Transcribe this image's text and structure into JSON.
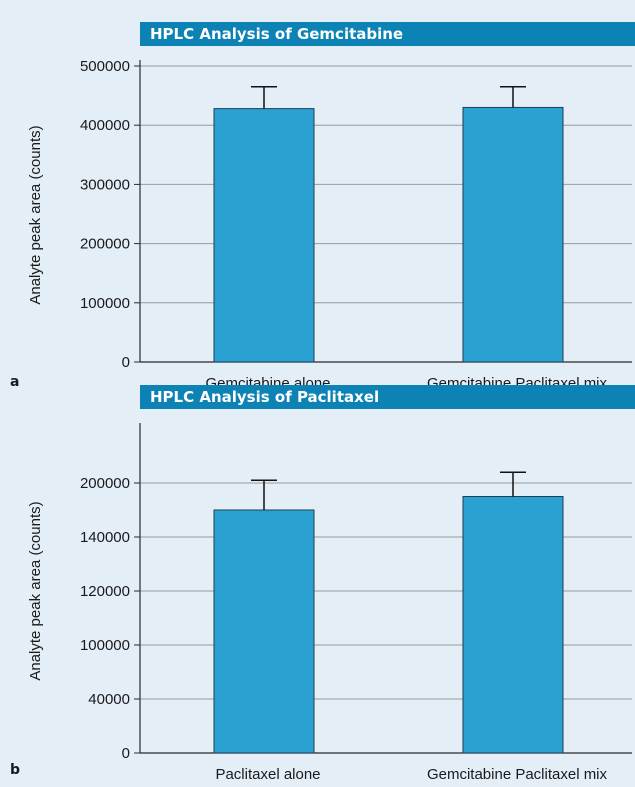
{
  "style": {
    "background": "#e3eef7",
    "title_bar": "#0d83b5",
    "bar_fill": "#2aa1d0",
    "bar_stroke": "#1d3e55",
    "grid": "#9a9a9a",
    "axis": "#2a2a2a"
  },
  "chart_data": [
    {
      "type": "bar",
      "panel_label": "a",
      "title": "HPLC Analysis of Gemcitabine",
      "ylabel": "Analyte peak area (counts)",
      "xlabel": "",
      "categories": [
        "Gemcitabine alone",
        "Gemcitabine Paclitaxel mix"
      ],
      "values": [
        428000,
        430000
      ],
      "error_upper": [
        465000,
        465000
      ],
      "ylim": [
        0,
        500000
      ],
      "y_ticks": [
        {
          "value": 0,
          "label": "0"
        },
        {
          "value": 100000,
          "label": "100000"
        },
        {
          "value": 200000,
          "label": "200000"
        },
        {
          "value": 300000,
          "label": "300000"
        },
        {
          "value": 400000,
          "label": "400000"
        },
        {
          "value": 500000,
          "label": "500000"
        }
      ],
      "grid": true,
      "legend": "none"
    },
    {
      "type": "bar",
      "panel_label": "b",
      "title": "HPLC Analysis of Paclitaxel",
      "ylabel": "Analyte peak area (counts)",
      "xlabel": "",
      "categories": [
        "Paclitaxel alone",
        "Gemcitabine Paclitaxel mix"
      ],
      "values": [
        4.5,
        4.75
      ],
      "error_upper": [
        5.05,
        5.2
      ],
      "ylim": [
        0,
        6
      ],
      "y_ticks": [
        {
          "value": 0,
          "label": "0"
        },
        {
          "value": 1,
          "label": "40000"
        },
        {
          "value": 2,
          "label": "100000"
        },
        {
          "value": 3,
          "label": "120000"
        },
        {
          "value": 4,
          "label": "140000"
        },
        {
          "value": 5,
          "label": "200000"
        }
      ],
      "grid": true,
      "legend": "none"
    }
  ]
}
